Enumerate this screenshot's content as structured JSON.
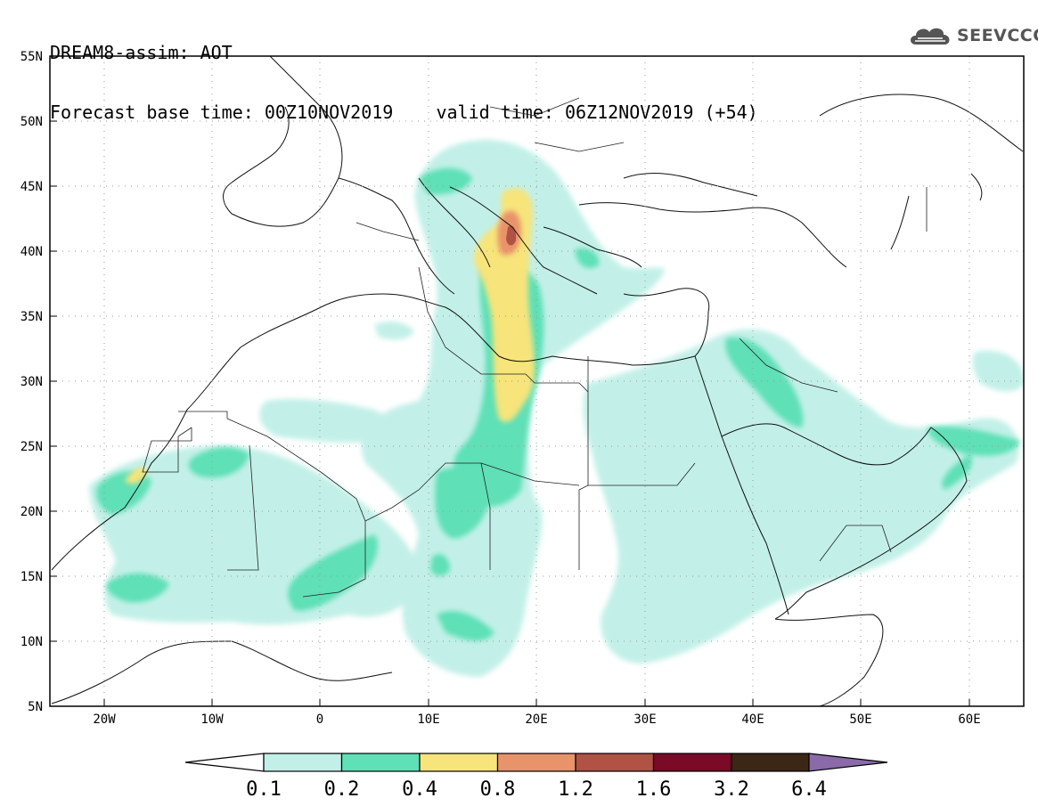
{
  "header": {
    "line1": "DREAM8-assim: AOT",
    "line2": "Forecast base time: 00Z10NOV2019    valid time: 06Z12NOV2019 (+54)"
  },
  "logo": {
    "text": "SEEVCCC",
    "icon": "cloud-icon"
  },
  "map": {
    "extent": {
      "lon_min": -25,
      "lon_max": 65,
      "lat_min": 5,
      "lat_max": 55
    },
    "lat_labels": [
      "55N",
      "50N",
      "45N",
      "40N",
      "35N",
      "30N",
      "25N",
      "20N",
      "15N",
      "10N",
      "5N"
    ],
    "lon_labels": [
      "20W",
      "10W",
      "0",
      "10E",
      "20E",
      "30E",
      "40E",
      "50E",
      "60E"
    ]
  },
  "colorbar": {
    "levels": [
      "0.1",
      "0.2",
      "0.4",
      "0.8",
      "1.2",
      "1.6",
      "3.2",
      "6.4"
    ],
    "colors": [
      "#ffffff",
      "#c2f0e8",
      "#5fe0b6",
      "#f7e47a",
      "#e8936a",
      "#b05244",
      "#7a0a26",
      "#3c2616",
      "#8a6aa8"
    ]
  }
}
